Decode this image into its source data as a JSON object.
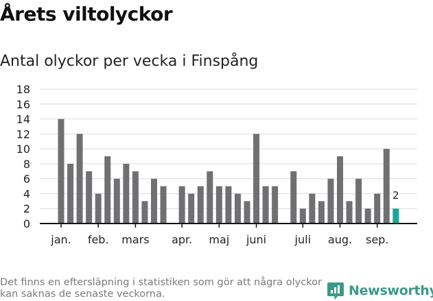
{
  "header": {
    "title": "Årets viltolyckor",
    "subtitle": "Antal olyckor per vecka i Finspång"
  },
  "chart_data": {
    "type": "bar",
    "title": "Antal olyckor per vecka i Finspång",
    "xlabel": "",
    "ylabel": "",
    "ylim": [
      0,
      18
    ],
    "y_ticks": [
      0,
      2,
      4,
      6,
      8,
      10,
      12,
      14,
      16,
      18
    ],
    "grid": true,
    "x_unit": "week",
    "series": [
      {
        "values": [
          14,
          8,
          12,
          7,
          4,
          9,
          6,
          8,
          7,
          3,
          6,
          5,
          null,
          5,
          4,
          5,
          7,
          5,
          5,
          4,
          3,
          12,
          5,
          5,
          null,
          7,
          2,
          4,
          3,
          6,
          9,
          3,
          6,
          2,
          4,
          10,
          2
        ]
      }
    ],
    "highlight": {
      "index": 36,
      "value": 2,
      "label": "2",
      "color": "#19a898"
    },
    "bar_color": "#707072",
    "month_labels": [
      {
        "label": "jan.",
        "week": 1
      },
      {
        "label": "feb.",
        "week": 5
      },
      {
        "label": "mars",
        "week": 9
      },
      {
        "label": "apr.",
        "week": 14
      },
      {
        "label": "maj",
        "week": 18
      },
      {
        "label": "juni",
        "week": 22
      },
      {
        "label": "juli",
        "week": 27
      },
      {
        "label": "aug.",
        "week": 31
      },
      {
        "label": "sep.",
        "week": 35
      }
    ]
  },
  "footer": {
    "note": "Det finns en eftersläpning i statistiken som gör att några olyckor kan saknas de senaste veckorna.",
    "brand": "Newsworthy"
  },
  "colors": {
    "accent": "#19a898",
    "bar": "#707072",
    "brand": "#3a9a8a"
  }
}
